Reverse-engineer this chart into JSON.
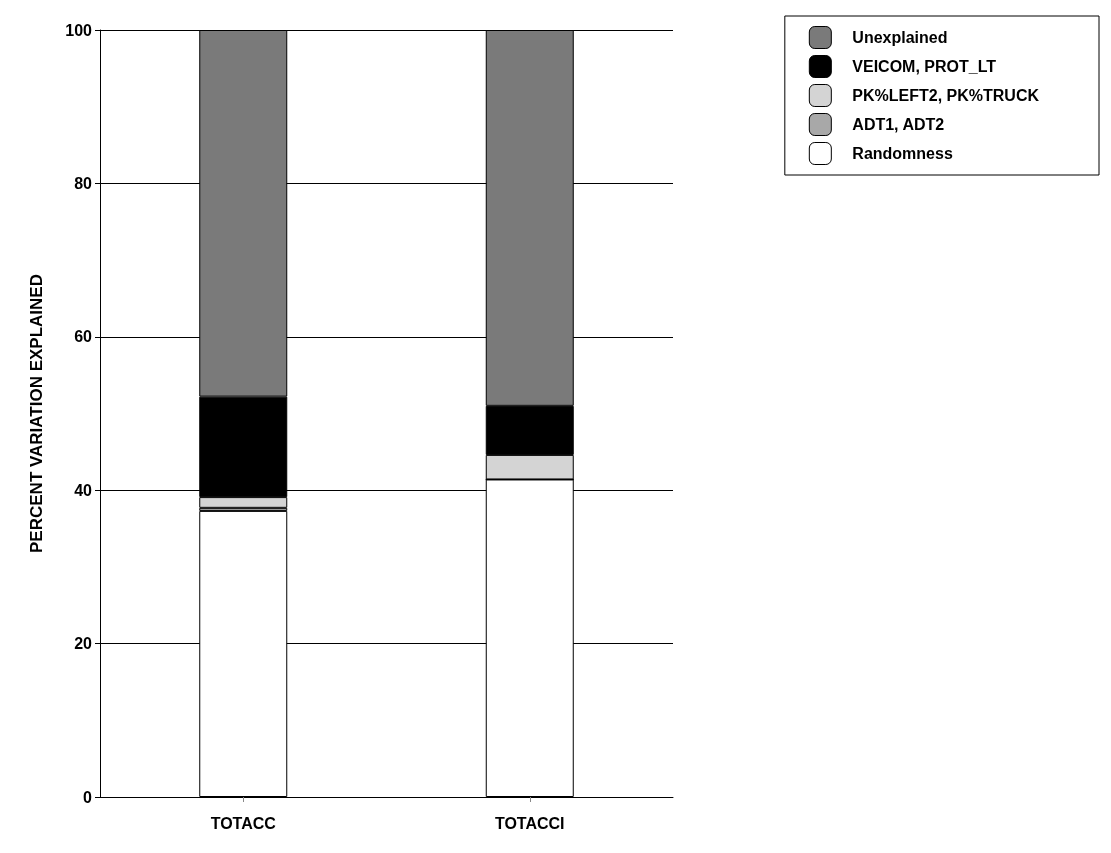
{
  "chart_data": {
    "type": "bar",
    "stacked": true,
    "ylabel": "PERCENT VARIATION EXPLAINED",
    "categories": [
      "TOTACC",
      "TOTACCI"
    ],
    "series": [
      {
        "name": "Randomness",
        "color": "#ffffff",
        "values": [
          37.3,
          41.4
        ]
      },
      {
        "name": "ADT1, ADT2",
        "color": "#a8a8a8",
        "values": [
          0.4,
          0
        ]
      },
      {
        "name": "PK%LEFT2, PK%TRUCK",
        "color": "#d4d4d4",
        "values": [
          1.4,
          3.2
        ]
      },
      {
        "name": "VEICOM, PROT_LT",
        "color": "#000000",
        "values": [
          13.1,
          6.4
        ]
      },
      {
        "name": "Unexplained",
        "color": "#7a7a7a",
        "values": [
          47.8,
          49.0
        ]
      }
    ],
    "ylim": [
      0,
      100
    ],
    "yticks": [
      0,
      20,
      40,
      60,
      80,
      100
    ],
    "grid": "y",
    "legend": "top right"
  }
}
